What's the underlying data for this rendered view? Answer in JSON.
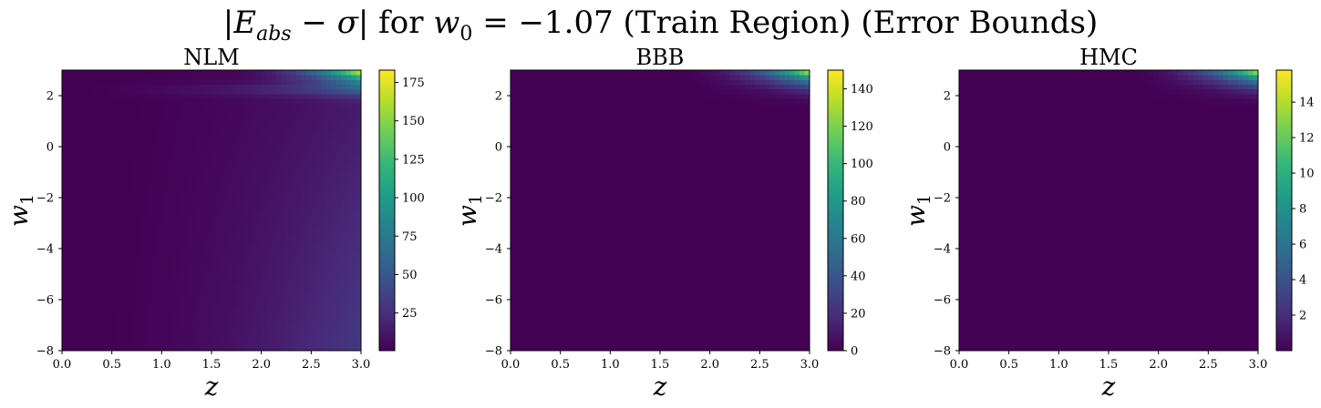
{
  "figure": {
    "suptitle_math": {
      "E": "E",
      "abs": "abs",
      "sigma": "σ",
      "for_text": " for ",
      "w": "w",
      "w_sub": "0",
      "eq": " = −1.07",
      "rest": " (Train Region) (Error Bounds)"
    }
  },
  "colormap": {
    "name": "viridis",
    "stops": [
      "#440154",
      "#482878",
      "#3e4989",
      "#31688e",
      "#26828e",
      "#1f9e89",
      "#35b779",
      "#6ece58",
      "#b5de2b",
      "#fde725"
    ]
  },
  "chart_data": [
    {
      "type": "heatmap",
      "title": "NLM",
      "xlabel": "z",
      "ylabel": "w",
      "ylabel_sub": "1",
      "xlim": [
        0.0,
        3.0
      ],
      "ylim": [
        -8,
        3
      ],
      "xticks": [
        "0.0",
        "0.5",
        "1.0",
        "1.5",
        "2.0",
        "2.5",
        "3.0"
      ],
      "yticks": [
        "−8",
        "−6",
        "−4",
        "−2",
        "0",
        "2"
      ],
      "colorbar": {
        "min": 0.5,
        "max": 183,
        "ticks": [
          25,
          50,
          75,
          100,
          125,
          150,
          175
        ]
      },
      "field": {
        "model": "nlm",
        "base_max": 32,
        "ridge_w1": 2.25,
        "corner_max": 183
      }
    },
    {
      "type": "heatmap",
      "title": "BBB",
      "xlabel": "z",
      "ylabel": "w",
      "ylabel_sub": "1",
      "xlim": [
        0.0,
        3.0
      ],
      "ylim": [
        -8,
        3
      ],
      "xticks": [
        "0.0",
        "0.5",
        "1.0",
        "1.5",
        "2.0",
        "2.5",
        "3.0"
      ],
      "yticks": [
        "−8",
        "−6",
        "−4",
        "−2",
        "0",
        "2"
      ],
      "colorbar": {
        "min": 0,
        "max": 150,
        "ticks": [
          0,
          20,
          40,
          60,
          80,
          100,
          120,
          140
        ]
      },
      "field": {
        "model": "corner",
        "corner_max": 150
      }
    },
    {
      "type": "heatmap",
      "title": "HMC",
      "xlabel": "z",
      "ylabel": "w",
      "ylabel_sub": "1",
      "xlim": [
        0.0,
        3.0
      ],
      "ylim": [
        -8,
        3
      ],
      "xticks": [
        "0.0",
        "0.5",
        "1.0",
        "1.5",
        "2.0",
        "2.5",
        "3.0"
      ],
      "yticks": [
        "−8",
        "−6",
        "−4",
        "−2",
        "0",
        "2"
      ],
      "colorbar": {
        "min": 0,
        "max": 15.8,
        "ticks": [
          2,
          4,
          6,
          8,
          10,
          12,
          14
        ]
      },
      "field": {
        "model": "corner",
        "corner_max": 15.8
      }
    }
  ]
}
